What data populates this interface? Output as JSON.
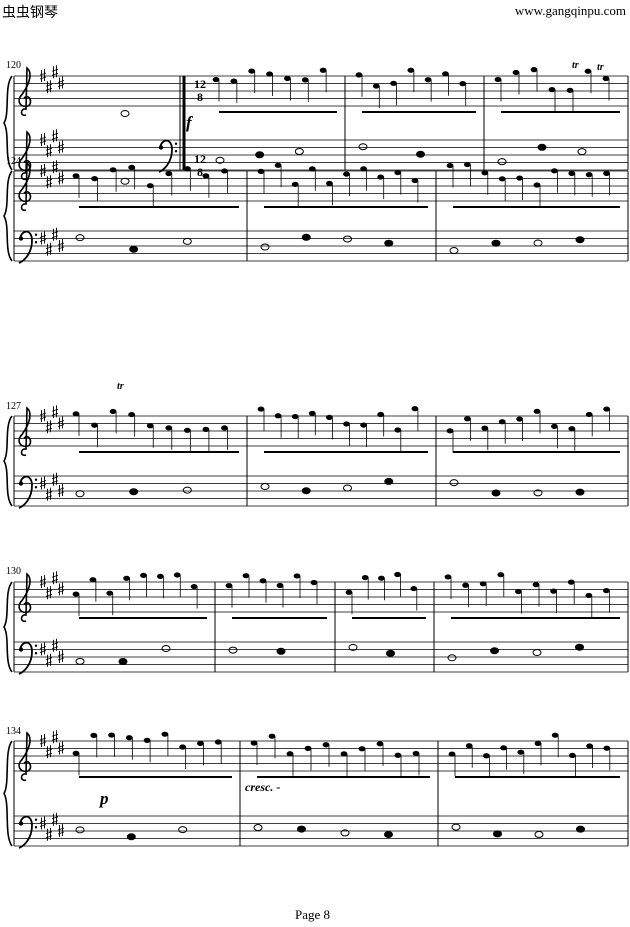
{
  "header": {
    "site_name": "虫虫钢琴",
    "site_url": "www.gangqinpu.com"
  },
  "score": {
    "measure_numbers": [
      "120",
      "124",
      "127",
      "130",
      "134"
    ],
    "time_signature": {
      "numerator": "12",
      "denominator": "8"
    },
    "key_signature": "E major (4 sharps)",
    "clef_change": "bass",
    "ornament": "tr",
    "dynamics": {
      "forte": "f",
      "piano": "p",
      "cresc": "cresc. -"
    }
  },
  "footer": {
    "page": "Page 8"
  }
}
